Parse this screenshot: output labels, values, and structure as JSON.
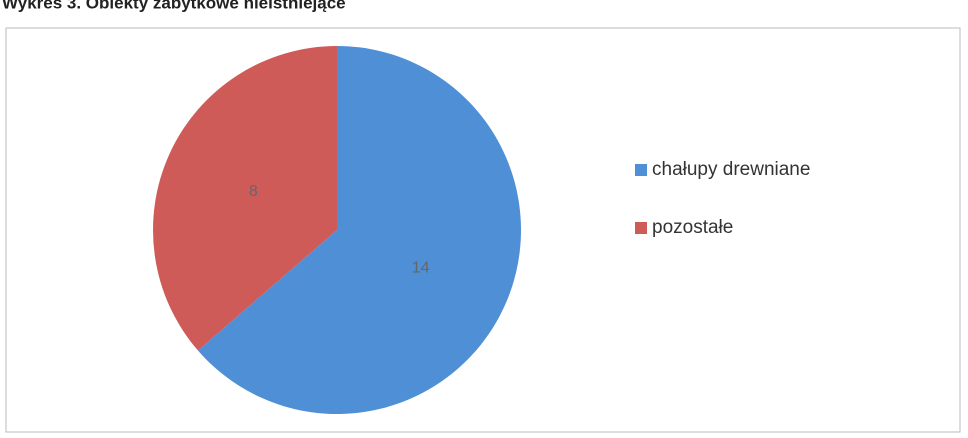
{
  "chart_data": {
    "type": "pie",
    "title": "Wykres 3. Obiekty zabytkowe nieistniejące",
    "categories": [
      "chałupy drewniane",
      "pozostałe"
    ],
    "values": [
      14,
      8
    ],
    "colors": [
      "#4f8fd6",
      "#cf5b58"
    ],
    "legend": "right"
  }
}
